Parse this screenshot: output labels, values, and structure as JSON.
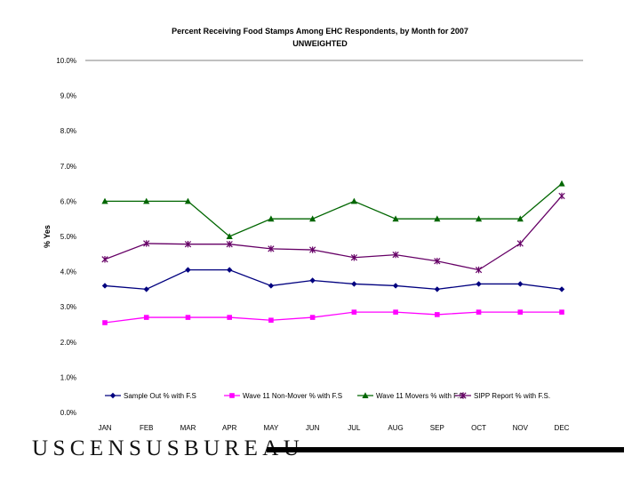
{
  "chart_data": {
    "type": "line",
    "title": "Percent Receiving Food Stamps Among EHC Respondents, by Month for 2007",
    "subtitle": "UNWEIGHTED",
    "xlabel": "",
    "ylabel": "% Yes",
    "categories": [
      "JAN",
      "FEB",
      "MAR",
      "APR",
      "MAY",
      "JUN",
      "JUL",
      "AUG",
      "SEP",
      "OCT",
      "NOV",
      "DEC"
    ],
    "y_ticks": [
      "0.0%",
      "1.0%",
      "2.0%",
      "3.0%",
      "4.0%",
      "5.0%",
      "6.0%",
      "7.0%",
      "8.0%",
      "9.0%",
      "10.0%"
    ],
    "ylim": [
      0,
      10
    ],
    "grid": "top line only",
    "legend_position": "bottom, inside plot",
    "series": [
      {
        "name": "Sample Out % with F.S",
        "marker": "diamond",
        "color": "#00007f",
        "values": [
          3.6,
          3.5,
          4.05,
          4.05,
          3.6,
          3.75,
          3.65,
          3.6,
          3.5,
          3.65,
          3.65,
          3.5
        ]
      },
      {
        "name": "Wave 11 Non-Mover % with F.S",
        "marker": "square",
        "color": "#ff00ff",
        "values": [
          2.55,
          2.7,
          2.7,
          2.7,
          2.62,
          2.7,
          2.85,
          2.85,
          2.78,
          2.85,
          2.85,
          2.85
        ]
      },
      {
        "name": "Wave 11 Movers % with F.S.",
        "marker": "triangle",
        "color": "#006600",
        "values": [
          6.0,
          6.0,
          6.0,
          5.0,
          5.5,
          5.5,
          6.0,
          5.5,
          5.5,
          5.5,
          5.5,
          6.5
        ]
      },
      {
        "name": "SIPP Report % with F.S.",
        "marker": "star",
        "color": "#660066",
        "values": [
          4.35,
          4.8,
          4.78,
          4.78,
          4.65,
          4.62,
          4.4,
          4.48,
          4.3,
          4.05,
          4.8,
          6.15
        ]
      }
    ]
  },
  "footer": {
    "logo_text": "USCENSUSBUREAU"
  }
}
